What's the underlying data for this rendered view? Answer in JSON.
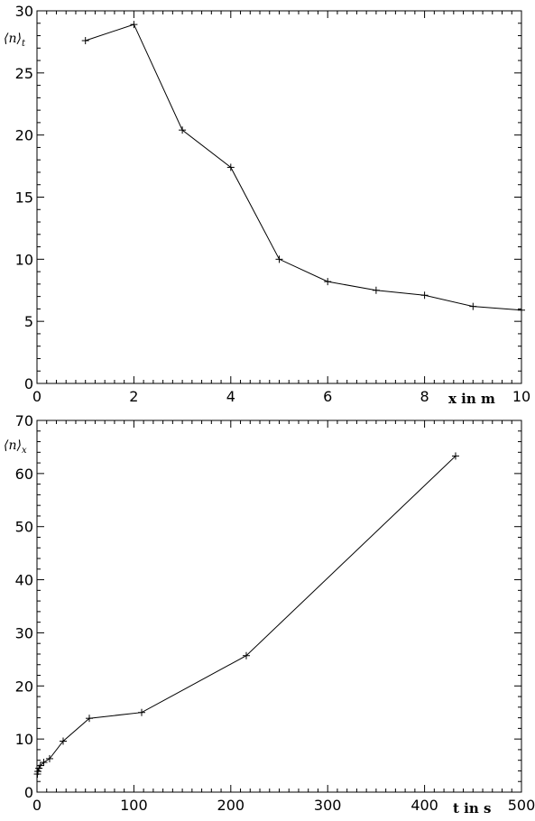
{
  "chart_data": [
    {
      "type": "line",
      "xlabel": "x in m",
      "ylabel": "⟨n⟩",
      "ylabel_sub": "t",
      "xlim": [
        0,
        10
      ],
      "ylim": [
        0,
        30
      ],
      "x_ticks": [
        0,
        2,
        4,
        6,
        8,
        10
      ],
      "y_ticks": [
        0,
        5,
        10,
        15,
        20,
        25,
        30
      ],
      "grid": false,
      "series": [
        {
          "x": [
            1,
            2,
            3,
            4,
            5,
            6,
            7,
            8,
            9,
            10
          ],
          "y": [
            27.6,
            28.9,
            20.4,
            17.4,
            10.0,
            8.2,
            7.5,
            7.1,
            6.2,
            5.9
          ]
        }
      ]
    },
    {
      "type": "line",
      "xlabel": "t in s",
      "ylabel": "⟨n⟩",
      "ylabel_sub": "x",
      "xlim": [
        0,
        500
      ],
      "ylim": [
        0,
        70
      ],
      "x_ticks": [
        0,
        100,
        200,
        300,
        400,
        500
      ],
      "y_ticks": [
        0,
        10,
        20,
        30,
        40,
        50,
        60,
        70
      ],
      "grid": false,
      "series": [
        {
          "x": [
            0.5,
            1,
            2,
            3.5,
            7,
            13,
            27,
            54,
            108,
            216,
            432
          ],
          "y": [
            3.4,
            3.9,
            4.5,
            5.0,
            5.6,
            6.3,
            9.6,
            13.9,
            15.0,
            25.7,
            63.3
          ]
        }
      ]
    }
  ]
}
